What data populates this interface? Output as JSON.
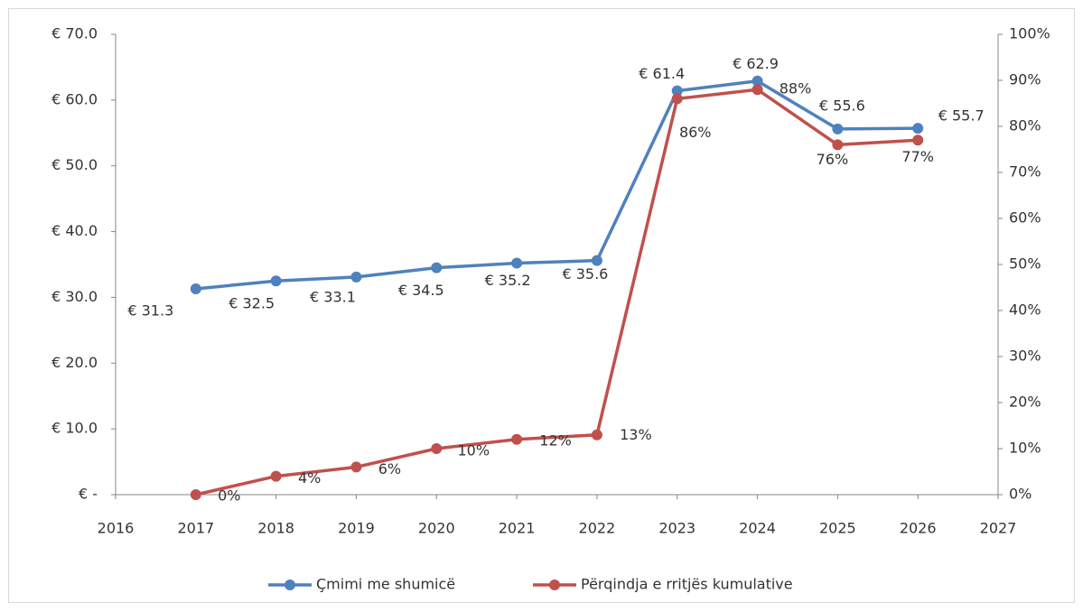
{
  "chart_data": {
    "type": "line",
    "x": [
      2017,
      2018,
      2019,
      2020,
      2021,
      2022,
      2023,
      2024,
      2025,
      2026
    ],
    "xlim": [
      2016,
      2027
    ],
    "xticks": [
      2016,
      2017,
      2018,
      2019,
      2020,
      2021,
      2022,
      2023,
      2024,
      2025,
      2026,
      2027
    ],
    "ylim": [
      0,
      70
    ],
    "yticks": [
      {
        "value": 0,
        "label": "€ -"
      },
      {
        "value": 10,
        "label": "€ 10.0"
      },
      {
        "value": 20,
        "label": "€ 20.0"
      },
      {
        "value": 30,
        "label": "€ 30.0"
      },
      {
        "value": 40,
        "label": "€ 40.0"
      },
      {
        "value": 50,
        "label": "€ 50.0"
      },
      {
        "value": 60,
        "label": "€ 60.0"
      },
      {
        "value": 70,
        "label": "€ 70.0"
      }
    ],
    "y2lim": [
      0,
      100
    ],
    "y2ticks": [
      {
        "value": 0,
        "label": "0%"
      },
      {
        "value": 10,
        "label": "10%"
      },
      {
        "value": 20,
        "label": "20%"
      },
      {
        "value": 30,
        "label": "30%"
      },
      {
        "value": 40,
        "label": "40%"
      },
      {
        "value": 50,
        "label": "50%"
      },
      {
        "value": 60,
        "label": "60%"
      },
      {
        "value": 70,
        "label": "70%"
      },
      {
        "value": 80,
        "label": "80%"
      },
      {
        "value": 90,
        "label": "90%"
      },
      {
        "value": 100,
        "label": "100%"
      }
    ],
    "legend": "bottom",
    "series": [
      {
        "name": "Çmimi me shumicë",
        "color": "#4f81bd",
        "values": [
          31.3,
          32.5,
          33.1,
          34.5,
          35.2,
          35.6,
          61.4,
          62.9,
          55.6,
          55.7
        ],
        "value_labels": [
          "€ 31.3",
          "€ 32.5",
          "€ 33.1",
          "€ 34.5",
          "€ 35.2",
          "€ 35.6",
          "€ 61.4",
          "€ 62.9",
          "€ 55.6",
          "€ 55.7"
        ]
      },
      {
        "name": "Përqindja e rritjës kumulative",
        "color": "#c0504d",
        "axis": "y2",
        "values": [
          0,
          4,
          6,
          10,
          12,
          13,
          86,
          88,
          76,
          77
        ],
        "value_labels": [
          "0%",
          "4%",
          "6%",
          "10%",
          "12%",
          "13%",
          "86%",
          "88%",
          "76%",
          "77%"
        ]
      }
    ]
  }
}
